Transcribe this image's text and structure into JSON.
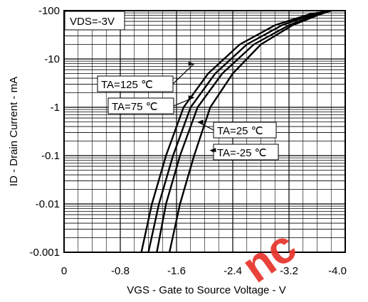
{
  "chart_data": {
    "type": "line",
    "xlabel": "VGS - Gate to Source Voltage - V",
    "ylabel": "ID - Drain Current - mA",
    "condition_label": "VDS=-3V",
    "x_ticks": [
      0,
      -0.8,
      -1.6,
      -2.4,
      -3.2,
      -4.0
    ],
    "x_tick_labels": [
      "0",
      "-0.8",
      "-1.6",
      "-2.4",
      "-3.2",
      "-4.0"
    ],
    "xlim": [
      0,
      -4.0
    ],
    "y_scale": "log",
    "y_ticks": [
      -0.001,
      -0.01,
      -0.1,
      -1,
      -10,
      -100
    ],
    "y_tick_labels": [
      "-0.001",
      "-0.01",
      "-0.1",
      "-1",
      "-10",
      "-100"
    ],
    "ylim": [
      -0.001,
      -100
    ],
    "grid": true,
    "series": [
      {
        "name": "TA=125 ℃",
        "x": [
          -1.1,
          -1.25,
          -1.45,
          -1.7,
          -2.05,
          -2.5,
          -3.0,
          -3.5,
          -3.8
        ],
        "y": [
          -0.001,
          -0.01,
          -0.1,
          -1,
          -5,
          -20,
          -50,
          -85,
          -100
        ]
      },
      {
        "name": "TA=75 ℃",
        "x": [
          -1.2,
          -1.35,
          -1.55,
          -1.8,
          -2.15,
          -2.6,
          -3.1,
          -3.55,
          -3.8
        ],
        "y": [
          -0.001,
          -0.01,
          -0.1,
          -1,
          -5,
          -20,
          -50,
          -85,
          -100
        ]
      },
      {
        "name": "TA=25 ℃",
        "x": [
          -1.32,
          -1.45,
          -1.65,
          -1.9,
          -2.25,
          -2.7,
          -3.2,
          -3.6,
          -3.8
        ],
        "y": [
          -0.001,
          -0.01,
          -0.1,
          -1,
          -5,
          -20,
          -50,
          -85,
          -100
        ]
      },
      {
        "name": "TA=-25 ℃",
        "x": [
          -1.5,
          -1.65,
          -1.85,
          -2.08,
          -2.4,
          -2.8,
          -3.25,
          -3.65,
          -3.8
        ],
        "y": [
          -0.001,
          -0.01,
          -0.1,
          -1,
          -5,
          -20,
          -50,
          -85,
          -100
        ]
      }
    ]
  },
  "watermark": "nc"
}
